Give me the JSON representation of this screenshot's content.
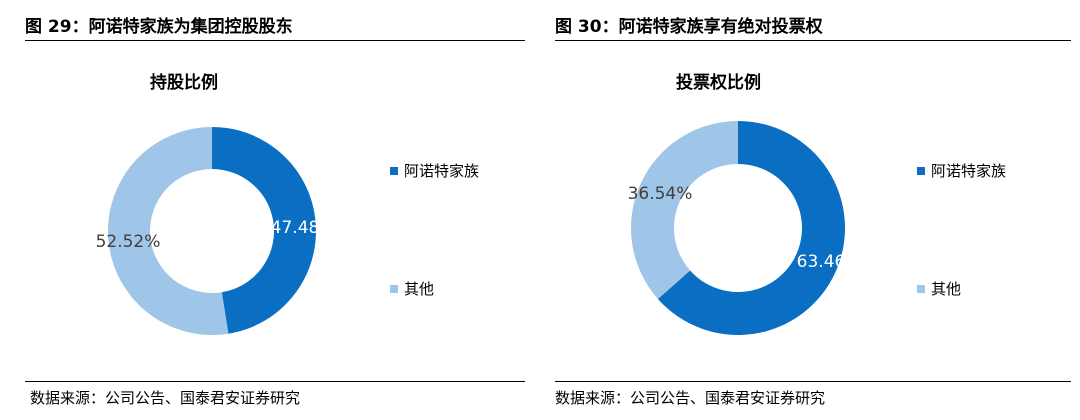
{
  "figures": [
    {
      "fig_title": "图 29：阿诺特家族为集团控股股东",
      "source": "数据来源：公司公告、国泰君安证券研究"
    },
    {
      "fig_title": "图 30：阿诺特家族享有绝对投票权",
      "source": "数据来源：公司公告、国泰君安证券研究"
    }
  ],
  "colors": {
    "primary": "#0a6fc2",
    "secondary": "#9fc5e8"
  },
  "chart_data": [
    {
      "type": "pie",
      "title": "持股比例",
      "donut": true,
      "categories": [
        "阿诺特家族",
        "其他"
      ],
      "values": [
        47.48,
        52.52
      ],
      "data_labels": [
        "47.48",
        "52.52%"
      ],
      "colors": [
        "#0a6fc2",
        "#9fc5e8"
      ],
      "legend": "right"
    },
    {
      "type": "pie",
      "title": "投票权比例",
      "donut": true,
      "categories": [
        "阿诺特家族",
        "其他"
      ],
      "values": [
        63.46,
        36.54
      ],
      "data_labels": [
        "63.46",
        "36.54%"
      ],
      "colors": [
        "#0a6fc2",
        "#9fc5e8"
      ],
      "legend": "right"
    }
  ]
}
